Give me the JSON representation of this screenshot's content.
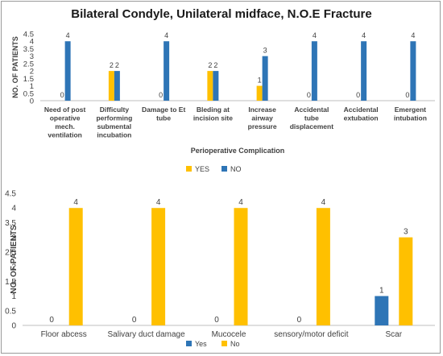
{
  "figure_title": "Bilateral Condyle, Unilateral midface, N.O.E Fracture",
  "colors": {
    "yes": "#FFC000",
    "no": "#2E75B6",
    "axis": "#bfbfbf",
    "text": "#404040",
    "title": "#1a1a1a"
  },
  "chart_data": [
    {
      "type": "bar",
      "title": "",
      "xlabel": "Perioperative Complication",
      "ylabel": "NO. OF PATIENTS",
      "ylim": [
        0,
        4.5
      ],
      "yticks": [
        "0",
        "0.5",
        "1",
        "1.5",
        "2",
        "2.5",
        "3",
        "3.5",
        "4",
        "4.5"
      ],
      "legend_position": "bottom",
      "categories": [
        "Need of post operative mech. ventilation",
        "Difficulty performing submental incubation",
        "Damage to Et tube",
        "Bleding at incision site",
        "Increase airway pressure",
        "Accidental tube displacement",
        "Accidental extubation",
        "Emergent intubation"
      ],
      "category_lines": [
        [
          "Need of post",
          "operative",
          "mech.",
          "ventilation"
        ],
        [
          "Difficulty",
          "performing",
          "submental",
          "incubation"
        ],
        [
          "Damage to Et",
          "tube"
        ],
        [
          "Bleding at",
          "incision site"
        ],
        [
          "Increase",
          "airway",
          "pressure"
        ],
        [
          "Accidental",
          "tube",
          "displacement"
        ],
        [
          "Accidental",
          "extubation"
        ],
        [
          "Emergent",
          "intubation"
        ]
      ],
      "series": [
        {
          "name": "YES",
          "color": "#FFC000",
          "values": [
            0,
            2,
            0,
            2,
            1,
            0,
            0,
            0
          ]
        },
        {
          "name": "NO",
          "color": "#2E75B6",
          "values": [
            4,
            2,
            4,
            2,
            3,
            4,
            4,
            4
          ]
        }
      ]
    },
    {
      "type": "bar",
      "title": "",
      "xlabel": "",
      "ylabel": "NO. OF PATIENTS",
      "ylim": [
        0,
        4.5
      ],
      "yticks": [
        "0",
        "0.5",
        "1",
        "1.5",
        "2",
        "2.5",
        "3",
        "3.5",
        "4",
        "4.5"
      ],
      "legend_position": "bottom",
      "categories": [
        "Floor abcess",
        "Salivary duct damage",
        "Mucocele",
        "sensory/motor deficit",
        "Scar"
      ],
      "category_lines": [
        [
          "Floor abcess"
        ],
        [
          "Salivary duct damage"
        ],
        [
          "Mucocele"
        ],
        [
          "sensory/motor deficit"
        ],
        [
          "Scar"
        ]
      ],
      "series": [
        {
          "name": "Yes",
          "color": "#2E75B6",
          "values": [
            0,
            0,
            0,
            0,
            1
          ]
        },
        {
          "name": "No",
          "color": "#FFC000",
          "values": [
            4,
            4,
            4,
            4,
            3
          ]
        }
      ]
    }
  ]
}
